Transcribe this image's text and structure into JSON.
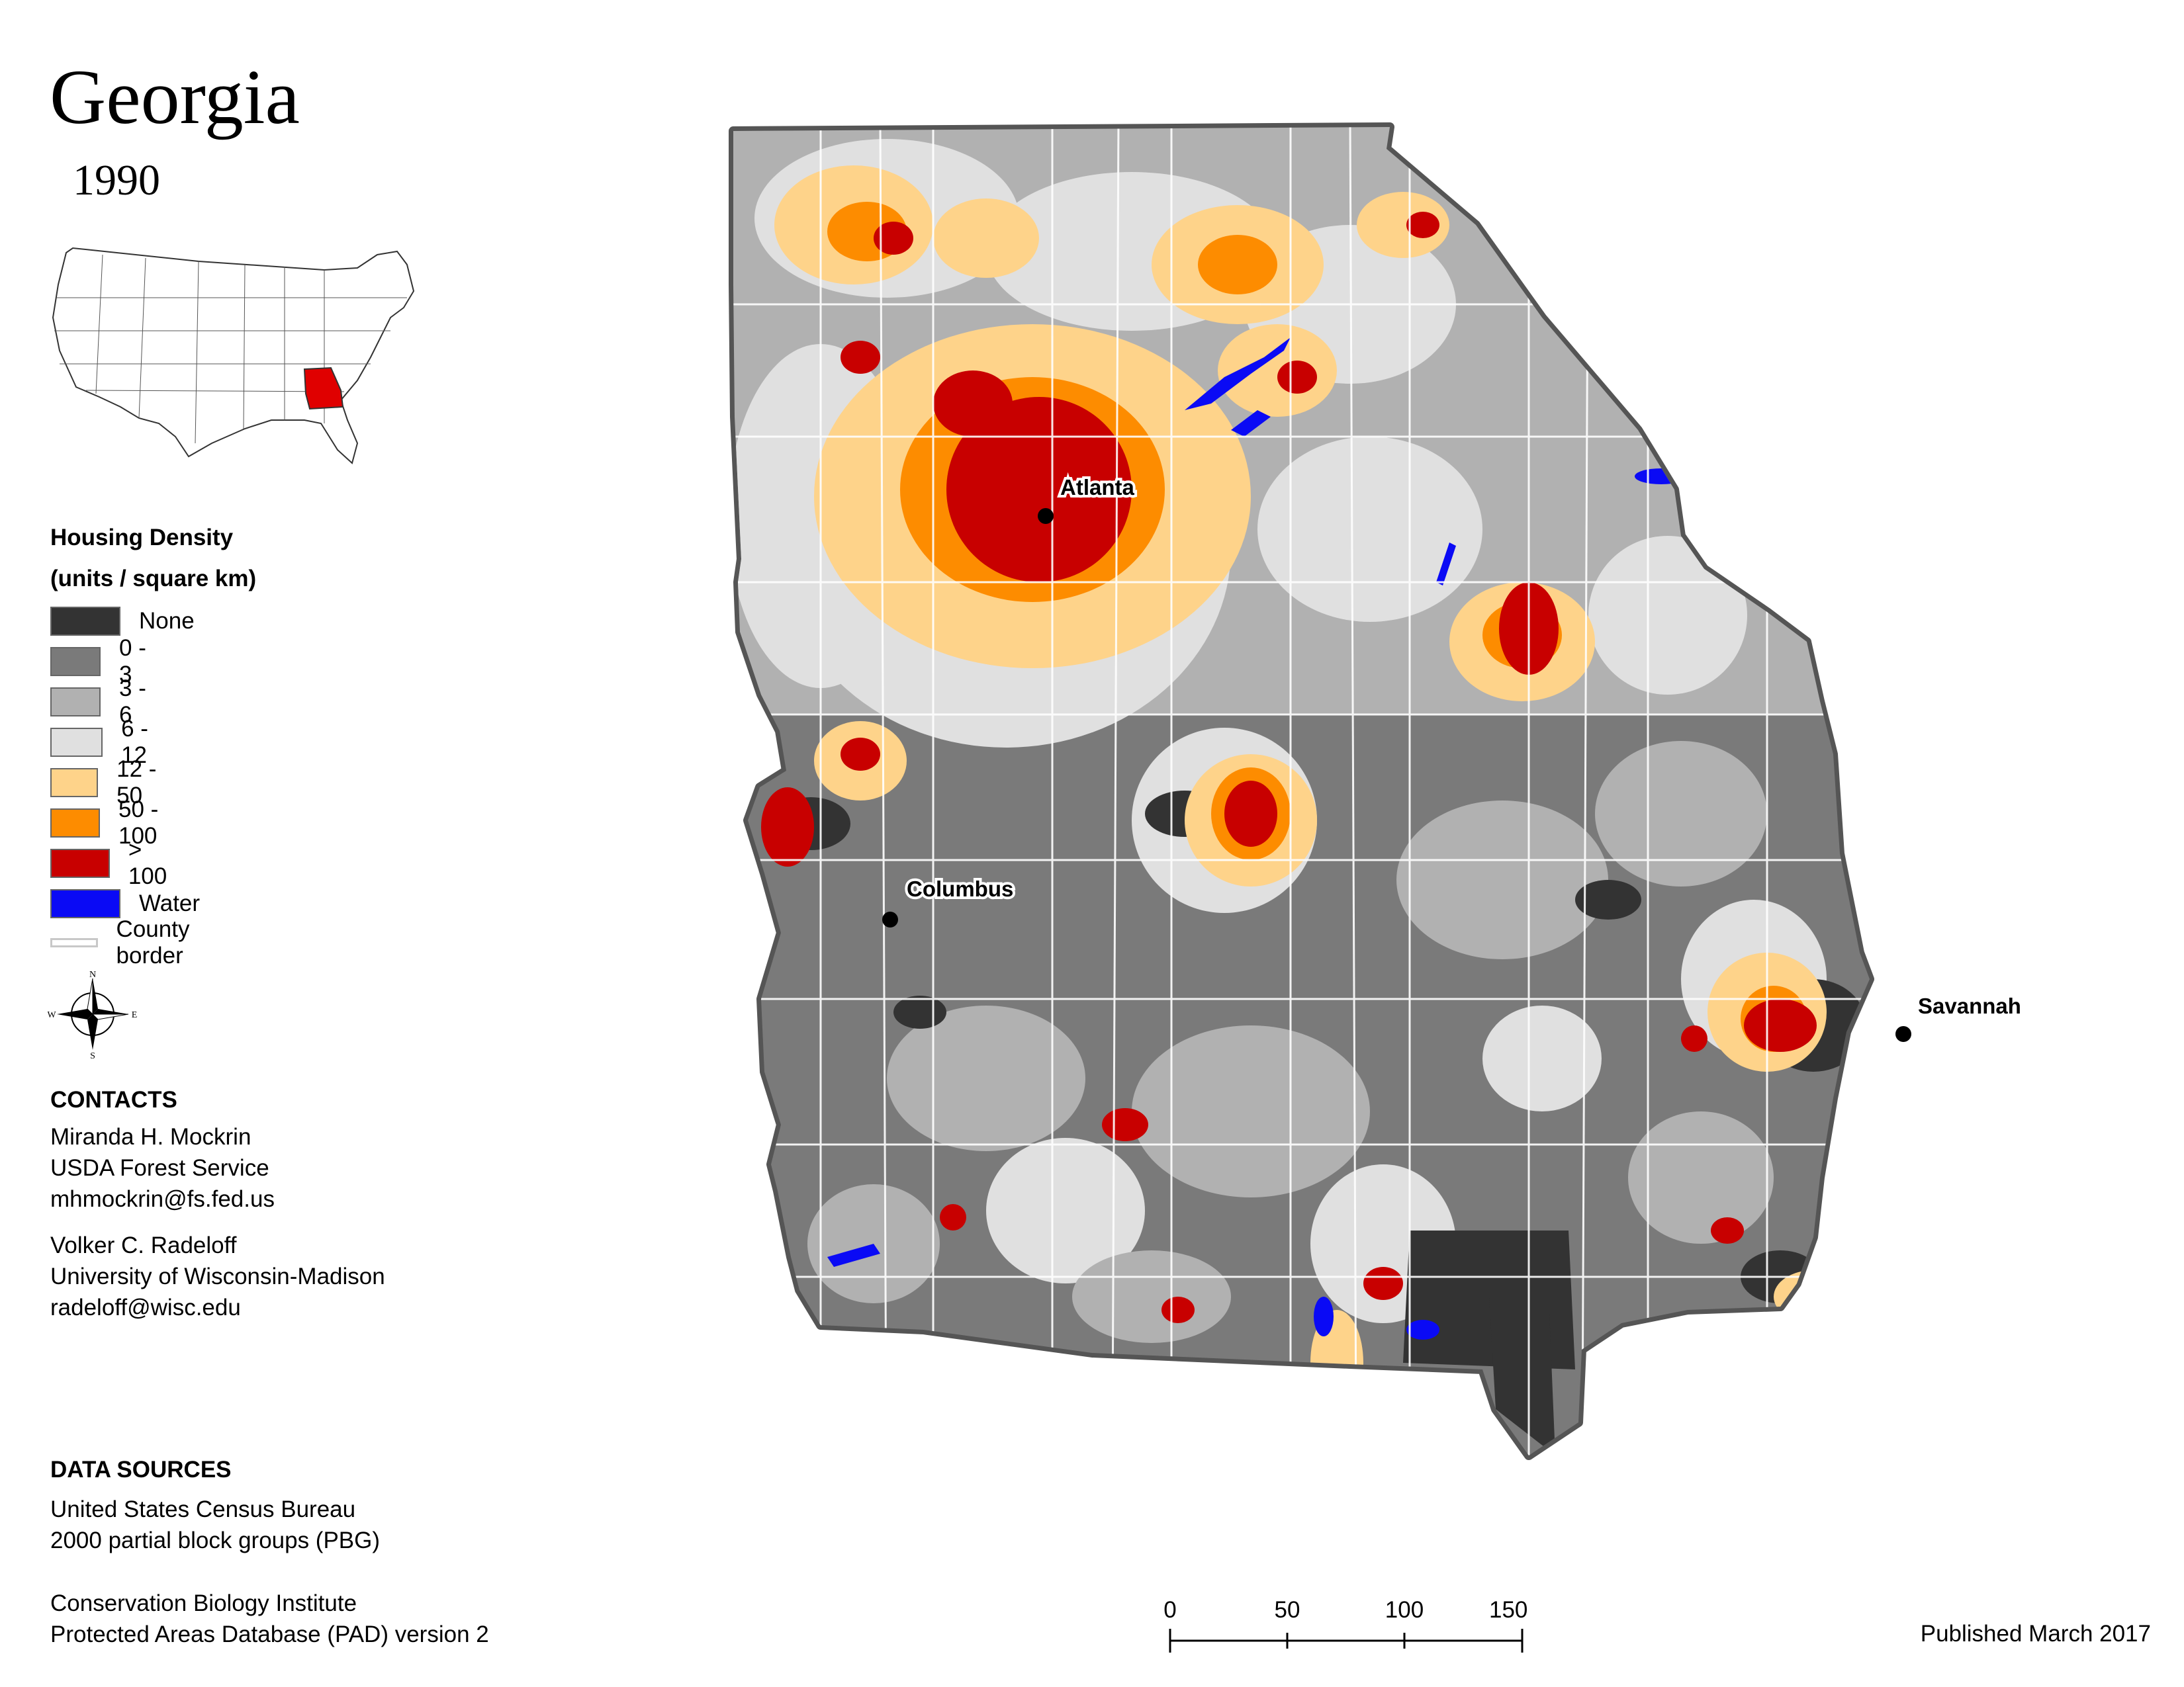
{
  "title": "Georgia",
  "year": "1990",
  "inset": {
    "highlight_color": "#e00000",
    "icon": "usa-locator-map"
  },
  "legend": {
    "title_line1": "Housing Density",
    "title_line2": "(units / square km)",
    "items": [
      {
        "label": "None",
        "color": "#333333"
      },
      {
        "label": "0 - 3",
        "color": "#7a7a7a"
      },
      {
        "label": "3 - 6",
        "color": "#b1b1b1"
      },
      {
        "label": "6 - 12",
        "color": "#e0e0e0"
      },
      {
        "label": "12 - 50",
        "color": "#fed38a"
      },
      {
        "label": "50 - 100",
        "color": "#fd8c00"
      },
      {
        "label": "> 100",
        "color": "#c80000"
      },
      {
        "label": "Water",
        "color": "#0a0af5"
      }
    ],
    "county_border_label": "County border"
  },
  "compass": {
    "n": "N",
    "s": "S",
    "e": "E",
    "w": "W"
  },
  "contacts": {
    "heading": "CONTACTS",
    "person1": [
      "Miranda H. Mockrin",
      "USDA Forest Service",
      "mhmockrin@fs.fed.us"
    ],
    "person2": [
      "Volker C. Radeloff",
      "University of Wisconsin-Madison",
      "radeloff@wisc.edu"
    ]
  },
  "data_sources": {
    "heading": "DATA SOURCES",
    "source1": [
      "United States Census Bureau",
      "2000 partial block groups (PBG)"
    ],
    "source2": [
      "Conservation Biology Institute",
      "Protected Areas Database (PAD) version 2"
    ]
  },
  "cities": [
    {
      "name": "Atlanta"
    },
    {
      "name": "Columbus"
    },
    {
      "name": "Savannah"
    }
  ],
  "scale_bar": {
    "ticks": [
      "0",
      "50",
      "100",
      "150 km"
    ]
  },
  "published": "Published March 2017"
}
